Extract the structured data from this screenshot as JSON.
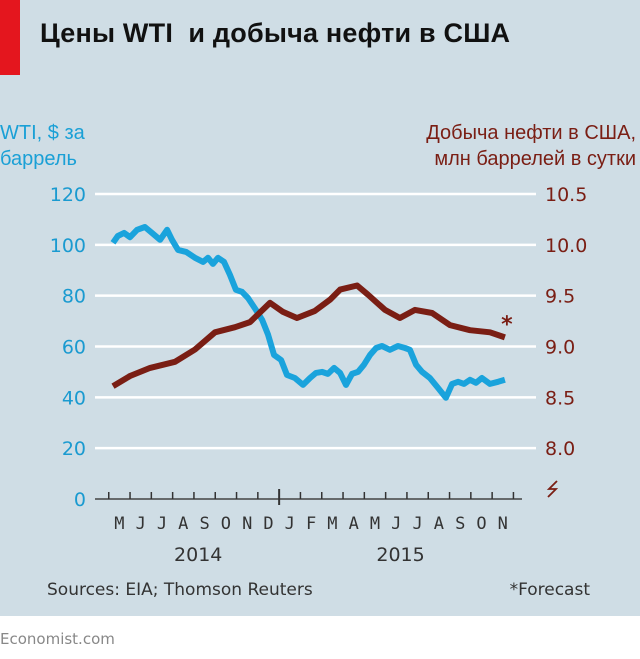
{
  "title": "Цены WTI  и добыча нефти в США",
  "left_axis_title": [
    "WTI, $ за",
    "баррель"
  ],
  "right_axis_title": [
    "Добыча нефти в США,",
    "млн баррелей в сутки"
  ],
  "source": "Sources: EIA; Thomson Reuters",
  "footnote": "*Forecast",
  "forecast_marker": "*",
  "brand": "Economist.com",
  "colors": {
    "wti": "#1aa3dc",
    "production": "#7a1e14",
    "background": "#cfdde5",
    "grid": "#ffffff",
    "accent": "#e4161e"
  },
  "chart_data": {
    "type": "line",
    "title": "Цены WTI  и добыча нефти в США",
    "x_unit": "months since May 2014",
    "xlim": [
      -0.2,
      19.0
    ],
    "x_tick_labels": [
      "M",
      "J",
      "J",
      "A",
      "S",
      "O",
      "N",
      "D",
      "J",
      "F",
      "M",
      "A",
      "M",
      "J",
      "J",
      "A",
      "S",
      "O",
      "N"
    ],
    "year_labels": [
      {
        "label": "2014",
        "center_month": 4.0
      },
      {
        "label": "2015",
        "center_month": 13.5
      }
    ],
    "y_left": {
      "label": "WTI, $ за баррель",
      "ylim": [
        0,
        120
      ],
      "ticks": [
        "0",
        "20",
        "40",
        "60",
        "80",
        "100",
        "120"
      ]
    },
    "y_right": {
      "label": "Добыча нефти в США, млн баррелей в сутки",
      "ylim": [
        7.5,
        10.5
      ],
      "ticks": [
        "8.0",
        "8.5",
        "9.0",
        "9.5",
        "10.0",
        "10.5"
      ],
      "axis_break": true
    },
    "grid": true,
    "series": [
      {
        "name": "WTI, $ за баррель",
        "axis": "left",
        "x": [
          0,
          0.23,
          0.52,
          0.8,
          1.13,
          1.5,
          1.83,
          2.21,
          2.54,
          2.77,
          3.05,
          3.43,
          3.85,
          4.23,
          4.46,
          4.69,
          4.93,
          5.21,
          5.49,
          5.77,
          6.06,
          6.34,
          6.71,
          7.0,
          7.28,
          7.56,
          7.89,
          8.17,
          8.54,
          8.92,
          9.25,
          9.53,
          9.81,
          10.09,
          10.38,
          10.66,
          10.94,
          11.22,
          11.5,
          11.78,
          12.07,
          12.35,
          12.63,
          13.0,
          13.38,
          13.71,
          13.94,
          14.23,
          14.51,
          14.88,
          15.26,
          15.63,
          15.92,
          16.2,
          16.48,
          16.76,
          17.04,
          17.32,
          17.7,
          18.08,
          18.4
        ],
        "y": [
          100.8,
          103.5,
          104.7,
          103,
          105.9,
          107,
          104.7,
          102,
          105.9,
          102,
          98,
          97.2,
          94.9,
          93.3,
          94.9,
          92.5,
          94.9,
          93.3,
          88.2,
          82.3,
          81.5,
          79.1,
          74.4,
          70.5,
          64.6,
          56.7,
          54.7,
          48.8,
          47.6,
          44.9,
          47.6,
          49.6,
          50,
          49.2,
          51.6,
          49.6,
          44.9,
          49.2,
          50,
          52.8,
          56.7,
          59.4,
          60.2,
          58.7,
          60.2,
          59.4,
          58.7,
          52.8,
          50,
          47.6,
          43.7,
          39.8,
          45.3,
          46.1,
          45.3,
          46.9,
          45.7,
          47.6,
          45.3,
          46.1,
          46.9
        ]
      },
      {
        "name": "Добыча нефти в США, млн баррелей в сутки",
        "axis": "right",
        "x": [
          0,
          0.8,
          1.74,
          2.91,
          3.85,
          4.79,
          5.73,
          6.43,
          7.37,
          7.98,
          8.64,
          9.48,
          10.19,
          10.66,
          11.46,
          11.97,
          12.77,
          13.47,
          14.18,
          14.98,
          15.82,
          16.76,
          17.7,
          18.4
        ],
        "y": [
          8.61,
          8.71,
          8.79,
          8.85,
          8.97,
          9.14,
          9.19,
          9.24,
          9.43,
          9.34,
          9.28,
          9.35,
          9.46,
          9.56,
          9.6,
          9.51,
          9.36,
          9.28,
          9.36,
          9.33,
          9.21,
          9.16,
          9.14,
          9.09
        ],
        "last_point_forecast": true
      }
    ]
  }
}
